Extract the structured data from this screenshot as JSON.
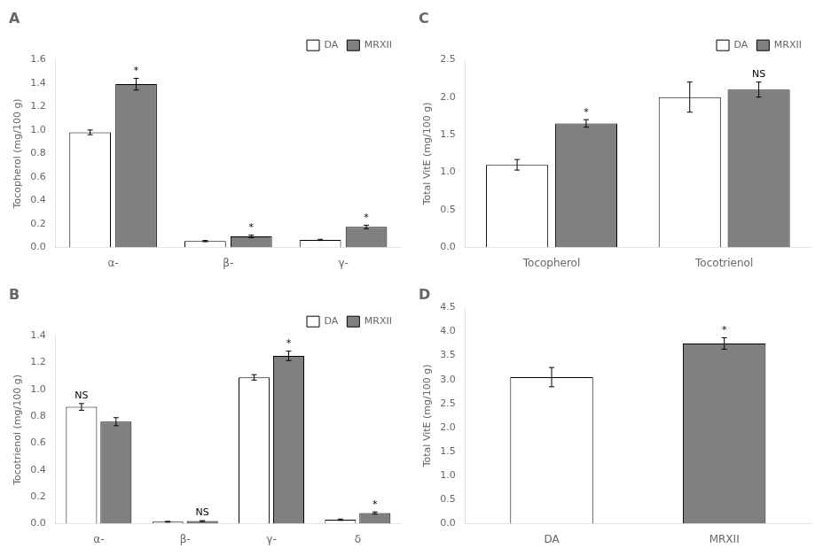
{
  "chart_data": [
    {
      "type": "bar",
      "title": "A",
      "categories": [
        "α-",
        "β-",
        "γ-"
      ],
      "series": [
        {
          "name": "DA",
          "color": "#ffffff",
          "values": [
            0.98,
            0.055,
            0.065
          ],
          "errors": [
            0.02,
            0.005,
            0.005
          ],
          "annotations": [
            null,
            null,
            null
          ]
        },
        {
          "name": "MRXII",
          "color": "#808080",
          "values": [
            1.39,
            0.095,
            0.175
          ],
          "errors": [
            0.05,
            0.01,
            0.015
          ],
          "annotations": [
            "*",
            "*",
            "*"
          ]
        }
      ],
      "ylabel": "Tocopherol (mg/100 g)",
      "ylim": [
        0,
        1.6
      ],
      "yticks": [
        {
          "value": 0,
          "label": "0.0"
        },
        0.2,
        0.4,
        0.6,
        0.8,
        {
          "value": 1,
          "label": "1.0"
        },
        1.2,
        1.4,
        1.6
      ],
      "legend": "upper right",
      "grid": false
    },
    {
      "type": "bar",
      "title": "C",
      "categories": [
        "Tocopherol",
        "Tocotrienol"
      ],
      "series": [
        {
          "name": "DA",
          "color": "#ffffff",
          "values": [
            1.1,
            2.0
          ],
          "errors": [
            0.07,
            0.2
          ],
          "annotations": [
            null,
            null
          ]
        },
        {
          "name": "MRXII",
          "color": "#808080",
          "values": [
            1.65,
            2.1
          ],
          "errors": [
            0.05,
            0.1
          ],
          "annotations": [
            "*",
            "NS"
          ]
        }
      ],
      "ylabel": "Total VitE (mg/100 g)",
      "ylim": [
        0,
        2.5
      ],
      "yticks": [
        {
          "value": 0,
          "label": "0.0"
        },
        0.5,
        {
          "value": 1,
          "label": "1.0"
        },
        1.5,
        {
          "value": 2,
          "label": "2.0"
        },
        2.5
      ],
      "legend": "upper right",
      "grid": false
    },
    {
      "type": "bar",
      "title": "B",
      "categories": [
        "α-",
        "β-",
        "γ-",
        "δ"
      ],
      "series": [
        {
          "name": "DA",
          "color": "#ffffff",
          "values": [
            0.87,
            0.015,
            1.09,
            0.03
          ],
          "errors": [
            0.025,
            0.003,
            0.02,
            0.005
          ],
          "annotations": [
            "NS",
            null,
            null,
            null
          ]
        },
        {
          "name": "MRXII",
          "color": "#808080",
          "values": [
            0.76,
            0.02,
            1.25,
            0.08
          ],
          "errors": [
            0.03,
            0.003,
            0.035,
            0.008
          ],
          "annotations": [
            null,
            "NS",
            "*",
            "*"
          ]
        }
      ],
      "ylabel": "Tocotrienol (mg/100 g)",
      "ylim": [
        0,
        1.4
      ],
      "yticks": [
        {
          "value": 0,
          "label": "0.0"
        },
        0.2,
        0.4,
        0.6,
        0.8,
        {
          "value": 1,
          "label": "1.0"
        },
        1.2,
        1.4
      ],
      "legend": "upper right",
      "grid": false
    },
    {
      "type": "bar",
      "title": "D",
      "categories": [
        "DA",
        "MRXII"
      ],
      "values": [
        3.05,
        3.75
      ],
      "colors": [
        "#ffffff",
        "#808080"
      ],
      "errors": [
        0.2,
        0.12
      ],
      "annotations": [
        null,
        "*"
      ],
      "ylabel": "Total VitE (mg/100 g)",
      "ylim": [
        0,
        4.5
      ],
      "yticks": [
        {
          "value": 0,
          "label": "0.0"
        },
        0.5,
        {
          "value": 1,
          "label": "1.0"
        },
        1.5,
        {
          "value": 2,
          "label": "2.0"
        },
        2.5,
        {
          "value": 3,
          "label": "3.0"
        },
        3.5,
        {
          "value": 4,
          "label": "4.0"
        },
        4.5
      ],
      "grid": false
    }
  ]
}
